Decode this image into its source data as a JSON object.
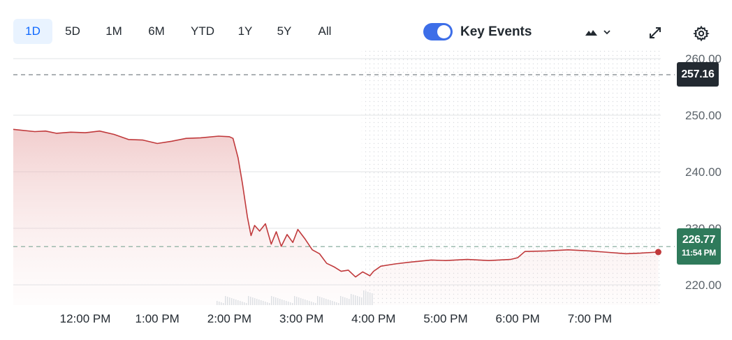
{
  "range_tabs": [
    {
      "label": "1D",
      "active": true
    },
    {
      "label": "5D",
      "active": false
    },
    {
      "label": "1M",
      "active": false
    },
    {
      "label": "6M",
      "active": false
    },
    {
      "label": "YTD",
      "active": false
    },
    {
      "label": "1Y",
      "active": false
    },
    {
      "label": "5Y",
      "active": false
    },
    {
      "label": "All",
      "active": false
    }
  ],
  "key_events": {
    "label": "Key Events",
    "enabled": true
  },
  "icons": {
    "chart_type": "mountain-chart-icon",
    "expand": "expand-icon",
    "settings": "gear-icon"
  },
  "colors": {
    "line": "#c0393b",
    "prev_close_badge": "#232a31",
    "last_badge": "#2f7a5b",
    "accent": "#0f69ff"
  },
  "badges": {
    "prev_close": "257.16",
    "last_price": "226.77",
    "last_time": "11:54 PM"
  },
  "chart_data": {
    "type": "area",
    "y_ticks": [
      "260.00",
      "250.00",
      "240.00",
      "230.00",
      "220.00"
    ],
    "y_tick_values": [
      260,
      250,
      240,
      230,
      220
    ],
    "ylim": [
      216.5,
      262
    ],
    "x_ticks": [
      "12:00 PM",
      "1:00 PM",
      "2:00 PM",
      "3:00 PM",
      "4:00 PM",
      "5:00 PM",
      "6:00 PM",
      "7:00 PM"
    ],
    "x_tick_hours": [
      12,
      13,
      14,
      15,
      16,
      17,
      18,
      19
    ],
    "xlim_hours": [
      11.15,
      20.0
    ],
    "previous_close": 257.16,
    "last_price": 226.77,
    "after_hours_start_hour": 16.0,
    "series": [
      {
        "x_hours": [
          11.15,
          11.3,
          11.45,
          11.6,
          11.8,
          12.0,
          12.2,
          12.4,
          12.6,
          12.8,
          13.0,
          13.2,
          13.4,
          13.6,
          13.85,
          14.0,
          14.05,
          14.12,
          14.18,
          14.25,
          14.3,
          14.35,
          14.42,
          14.5,
          14.58,
          14.65,
          14.72,
          14.8,
          14.88,
          14.95,
          15.05,
          15.15,
          15.25,
          15.35,
          15.45,
          15.55,
          15.65,
          15.75,
          15.85,
          15.95,
          16.0,
          16.1,
          16.3,
          16.5,
          16.8,
          17.0,
          17.3,
          17.6,
          17.9,
          18.0,
          18.1,
          18.4,
          18.7,
          19.0,
          19.2,
          19.5,
          19.7,
          19.95
        ],
        "y": [
          247.5,
          247.1,
          247.2,
          246.8,
          247.0,
          246.9,
          247.2,
          246.6,
          245.7,
          245.6,
          245.0,
          245.4,
          245.9,
          246.0,
          246.3,
          246.2,
          245.9,
          242.5,
          238.0,
          232.0,
          228.7,
          230.5,
          229.5,
          230.8,
          227.2,
          229.4,
          226.8,
          228.9,
          227.5,
          229.8,
          228.1,
          226.2,
          225.5,
          223.8,
          223.2,
          222.4,
          222.6,
          221.4,
          222.3,
          221.6,
          222.4,
          223.3,
          223.7,
          224.0,
          224.4,
          224.3,
          224.5,
          224.3,
          224.5,
          224.8,
          225.9,
          226.0,
          226.2,
          226.0,
          225.8,
          225.5,
          225.6,
          225.8
        ]
      }
    ]
  }
}
